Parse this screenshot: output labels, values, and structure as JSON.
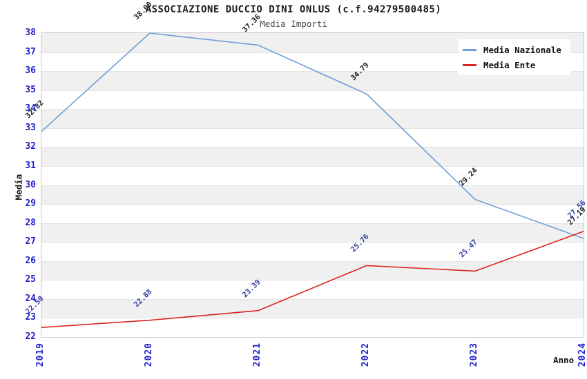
{
  "chart_data": {
    "type": "line",
    "title": "ASSOCIAZIONE DUCCIO DINI ONLUS (c.f.94279500485)",
    "subtitle": "Media Importi",
    "xlabel": "Anno",
    "ylabel": "Media",
    "x": [
      "2019",
      "2020",
      "2021",
      "2022",
      "2023",
      "2024"
    ],
    "ylim": [
      22,
      38
    ],
    "ytick_step": 1,
    "grid": "horizontal-stripes",
    "stripe_color": "#f0f0f0",
    "gridline_color": "#e3e3e3",
    "tick_label_color": "#2222cc",
    "legend_position": "top-right",
    "series": [
      {
        "name": "Media Nazionale",
        "color": "#6f9fd8",
        "label_color": "#222222",
        "values": [
          32.82,
          38.0,
          37.36,
          34.79,
          29.24,
          27.19
        ],
        "labels": [
          "32.82",
          "38.00",
          "37.36",
          "34.79",
          "29.24",
          "27.19"
        ]
      },
      {
        "name": "Media Ente",
        "color": "#dd2222",
        "label_color": "#2f3a9e",
        "values": [
          22.5,
          22.88,
          23.39,
          25.76,
          25.47,
          27.56
        ],
        "labels": [
          "22.50",
          "22.88",
          "23.39",
          "25.76",
          "25.47",
          "27.56"
        ]
      }
    ]
  }
}
